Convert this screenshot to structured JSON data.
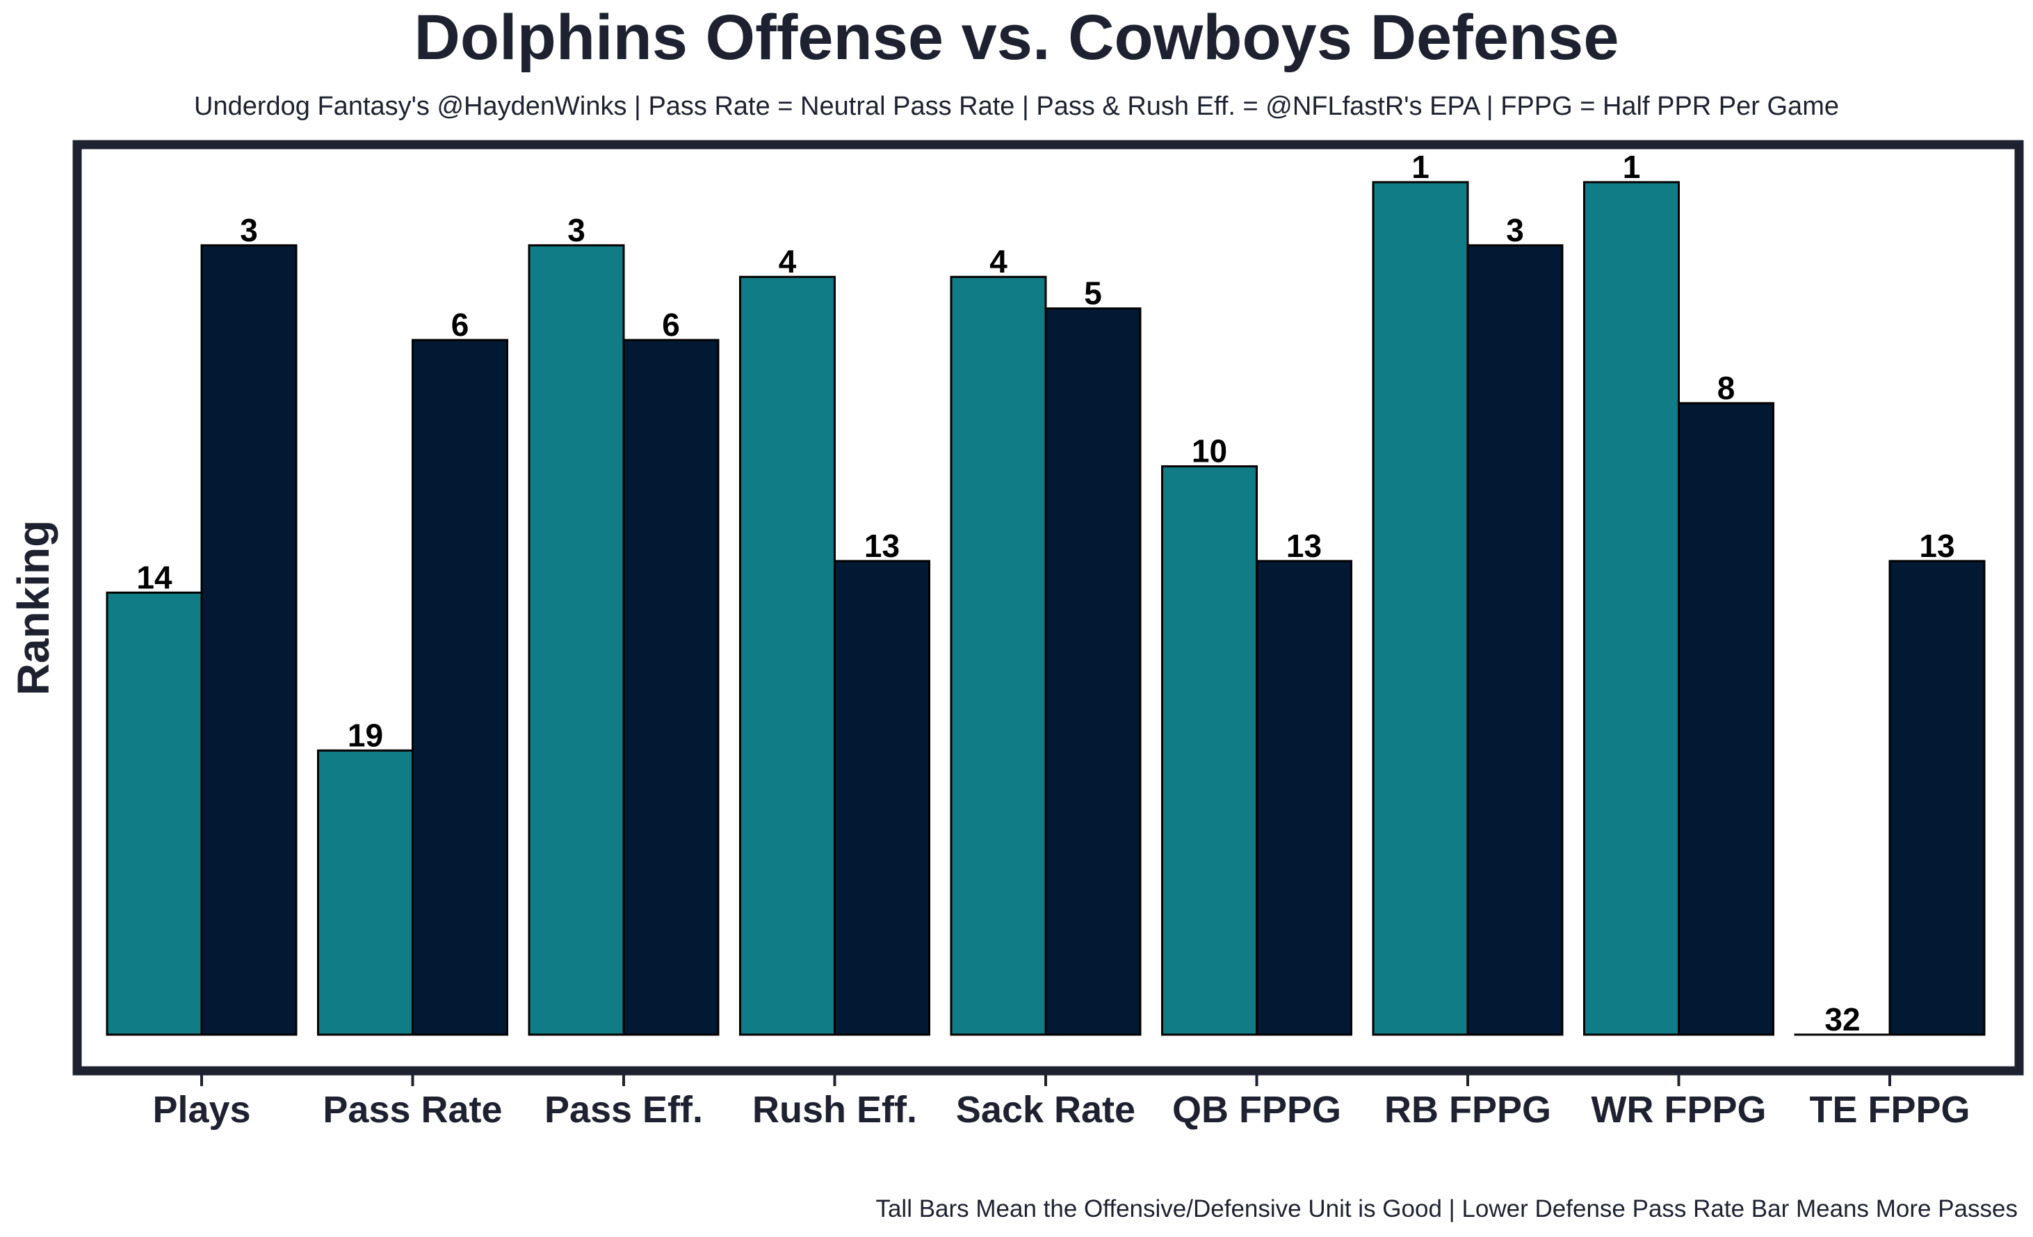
{
  "chart_data": {
    "type": "bar",
    "title": "Dolphins Offense vs. Cowboys Defense",
    "subtitle": "Underdog Fantasy's @HaydenWinks | Pass Rate = Neutral Pass Rate | Pass & Rush Eff. = @NFLfastR's EPA | FPPG = Half PPR Per Game",
    "footer": "Tall Bars Mean the Offensive/Defensive Unit is Good | Lower Defense Pass Rate Bar Means More Passes",
    "xlabel": "",
    "ylabel": "Ranking",
    "categories": [
      "Plays",
      "Pass Rate",
      "Pass Eff.",
      "Rush Eff.",
      "Sack Rate",
      "QB FPPG",
      "RB FPPG",
      "WR FPPG",
      "TE FPPG"
    ],
    "series": [
      {
        "values": [
          14,
          19,
          3,
          4,
          4,
          10,
          1,
          1,
          32
        ],
        "color": "#107d86"
      },
      {
        "values": [
          3,
          6,
          6,
          13,
          5,
          13,
          3,
          8,
          13
        ],
        "color": "#021933"
      }
    ],
    "y_scale": "ranking",
    "ylim": [
      32,
      1
    ],
    "grid": false,
    "legend": "none",
    "frame_color": "#1e2230"
  }
}
